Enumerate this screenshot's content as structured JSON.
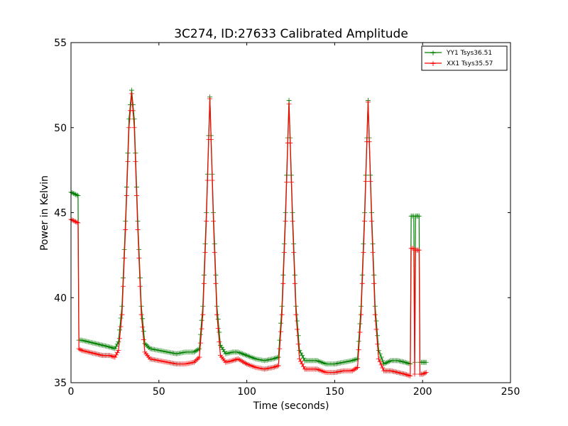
{
  "chart_data": {
    "type": "line",
    "title": "3C274, ID:27633 Calibrated Amplitude",
    "xlabel": "Time (seconds)",
    "ylabel": "Power in Kelvin",
    "xlim": [
      0,
      250
    ],
    "ylim": [
      35,
      55
    ],
    "xticks": [
      0,
      50,
      100,
      150,
      200,
      250
    ],
    "yticks": [
      35,
      40,
      45,
      50,
      55
    ],
    "grid": false,
    "legend_position": "top-right",
    "series": [
      {
        "name": "YY1 Tsys36.51",
        "color": "#008000",
        "marker": "+",
        "points": [
          [
            0,
            46.2
          ],
          [
            2,
            46.1
          ],
          [
            4,
            46.0
          ],
          [
            4.5,
            37.5
          ],
          [
            6,
            37.5
          ],
          [
            10,
            37.4
          ],
          [
            14,
            37.3
          ],
          [
            18,
            37.2
          ],
          [
            22,
            37.1
          ],
          [
            25,
            37.0
          ],
          [
            27,
            37.4
          ],
          [
            29,
            39.5
          ],
          [
            31,
            44.5
          ],
          [
            33,
            50.5
          ],
          [
            34.5,
            52.2
          ],
          [
            36,
            50.5
          ],
          [
            38,
            44.5
          ],
          [
            40,
            39.5
          ],
          [
            42,
            37.3
          ],
          [
            45,
            37.0
          ],
          [
            50,
            36.9
          ],
          [
            55,
            36.8
          ],
          [
            60,
            36.7
          ],
          [
            65,
            36.8
          ],
          [
            70,
            36.8
          ],
          [
            73,
            37.0
          ],
          [
            75,
            39.5
          ],
          [
            77,
            45.0
          ],
          [
            79,
            51.8
          ],
          [
            81,
            45.0
          ],
          [
            83,
            39.5
          ],
          [
            85,
            37.2
          ],
          [
            88,
            36.7
          ],
          [
            92,
            36.8
          ],
          [
            95,
            36.8
          ],
          [
            100,
            36.6
          ],
          [
            105,
            36.4
          ],
          [
            110,
            36.3
          ],
          [
            115,
            36.4
          ],
          [
            118,
            36.5
          ],
          [
            120,
            39.5
          ],
          [
            122,
            45.0
          ],
          [
            124,
            51.6
          ],
          [
            126,
            45.0
          ],
          [
            128,
            39.5
          ],
          [
            130,
            36.9
          ],
          [
            133,
            36.3
          ],
          [
            140,
            36.3
          ],
          [
            145,
            36.1
          ],
          [
            150,
            36.1
          ],
          [
            155,
            36.2
          ],
          [
            160,
            36.3
          ],
          [
            163,
            36.4
          ],
          [
            165,
            39.5
          ],
          [
            167,
            45.0
          ],
          [
            169,
            51.6
          ],
          [
            171,
            45.0
          ],
          [
            173,
            39.5
          ],
          [
            175,
            36.9
          ],
          [
            178,
            36.1
          ],
          [
            182,
            36.3
          ],
          [
            186,
            36.3
          ],
          [
            190,
            36.2
          ],
          [
            193,
            36.1
          ],
          [
            193.5,
            44.8
          ],
          [
            195,
            44.8
          ],
          [
            195.5,
            36.2
          ],
          [
            196,
            44.8
          ],
          [
            198,
            44.8
          ],
          [
            198.5,
            36.2
          ],
          [
            200,
            36.2
          ],
          [
            202,
            36.2
          ]
        ]
      },
      {
        "name": "XX1 Tsys35.57",
        "color": "#ff0000",
        "marker": "+",
        "points": [
          [
            0,
            44.6
          ],
          [
            2,
            44.5
          ],
          [
            4,
            44.4
          ],
          [
            4.5,
            37.0
          ],
          [
            6,
            36.9
          ],
          [
            10,
            36.8
          ],
          [
            14,
            36.7
          ],
          [
            18,
            36.6
          ],
          [
            22,
            36.6
          ],
          [
            25,
            36.5
          ],
          [
            27,
            36.9
          ],
          [
            29,
            39.0
          ],
          [
            31,
            44.0
          ],
          [
            33,
            50.0
          ],
          [
            34.5,
            52.0
          ],
          [
            36,
            50.0
          ],
          [
            38,
            44.0
          ],
          [
            40,
            39.0
          ],
          [
            42,
            36.8
          ],
          [
            45,
            36.4
          ],
          [
            50,
            36.3
          ],
          [
            55,
            36.2
          ],
          [
            60,
            36.1
          ],
          [
            65,
            36.1
          ],
          [
            70,
            36.2
          ],
          [
            73,
            36.5
          ],
          [
            75,
            39.0
          ],
          [
            77,
            44.5
          ],
          [
            79,
            51.7
          ],
          [
            81,
            44.5
          ],
          [
            83,
            39.0
          ],
          [
            85,
            36.6
          ],
          [
            88,
            36.2
          ],
          [
            92,
            36.3
          ],
          [
            95,
            36.4
          ],
          [
            100,
            36.1
          ],
          [
            105,
            35.9
          ],
          [
            110,
            35.8
          ],
          [
            115,
            35.9
          ],
          [
            118,
            36.0
          ],
          [
            120,
            39.0
          ],
          [
            122,
            44.5
          ],
          [
            124,
            51.4
          ],
          [
            126,
            44.5
          ],
          [
            128,
            39.0
          ],
          [
            130,
            36.4
          ],
          [
            133,
            35.8
          ],
          [
            140,
            35.8
          ],
          [
            145,
            35.6
          ],
          [
            150,
            35.6
          ],
          [
            155,
            35.7
          ],
          [
            160,
            35.7
          ],
          [
            163,
            35.9
          ],
          [
            165,
            39.0
          ],
          [
            167,
            44.5
          ],
          [
            169,
            51.5
          ],
          [
            171,
            44.5
          ],
          [
            173,
            39.0
          ],
          [
            175,
            36.4
          ],
          [
            178,
            35.7
          ],
          [
            182,
            35.7
          ],
          [
            186,
            35.6
          ],
          [
            190,
            35.5
          ],
          [
            193,
            35.4
          ],
          [
            193.5,
            42.9
          ],
          [
            195,
            42.9
          ],
          [
            195.5,
            35.5
          ],
          [
            196,
            42.8
          ],
          [
            198,
            42.8
          ],
          [
            198.5,
            35.5
          ],
          [
            200,
            35.5
          ],
          [
            202,
            35.6
          ]
        ]
      }
    ]
  }
}
